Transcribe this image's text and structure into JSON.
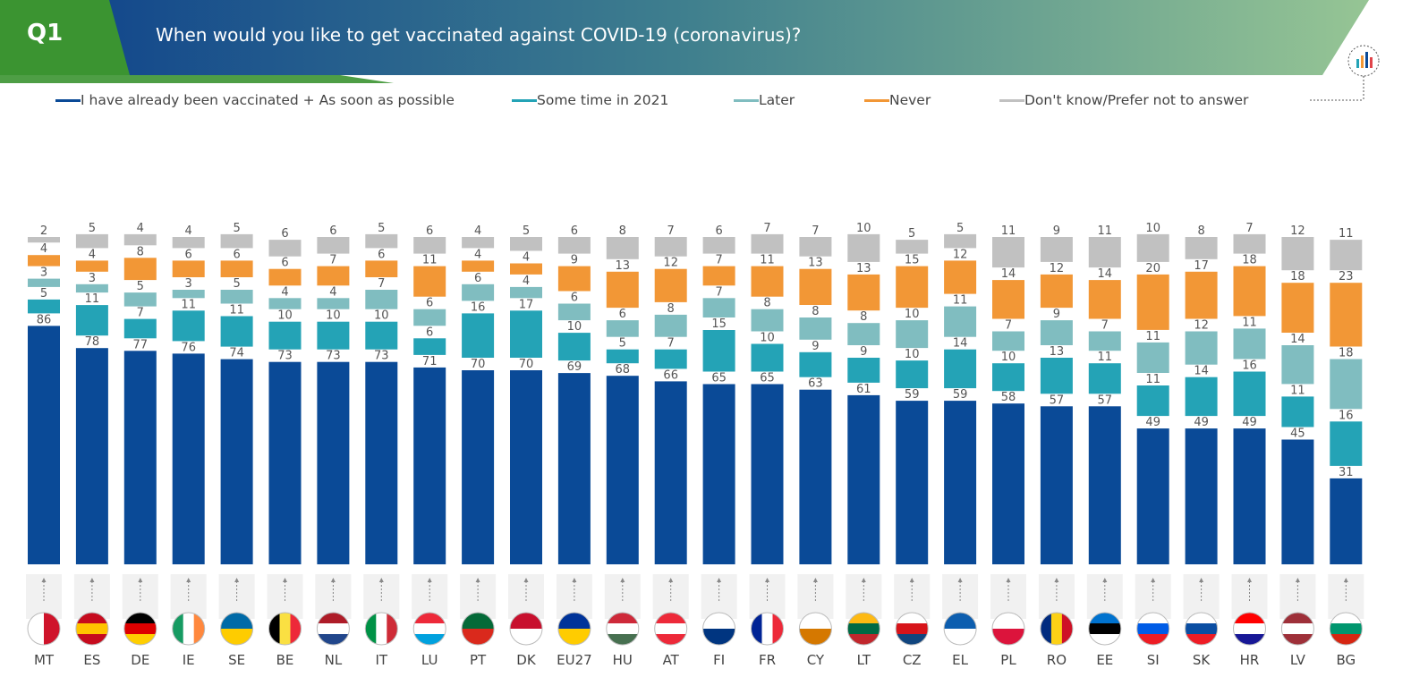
{
  "header": {
    "q_label": "Q1",
    "title": "When would you like to get vaccinated against COVID-19 (coronavirus)?"
  },
  "colors": {
    "header_green": "#3b9431",
    "header_blue": "#0c3f8c",
    "header_light": "#8fc18f",
    "series": [
      "#0a4a97",
      "#24a3b6",
      "#80bdc0",
      "#f29736",
      "#c1c1c1"
    ]
  },
  "legend": [
    {
      "label": "I have already been vaccinated + As soon as possible",
      "color": "#0a4a97"
    },
    {
      "label": "Some time in 2021",
      "color": "#24a3b6"
    },
    {
      "label": "Later",
      "color": "#80bdc0"
    },
    {
      "label": "Never",
      "color": "#f29736"
    },
    {
      "label": "Don't know/Prefer not to answer",
      "color": "#c1c1c1"
    }
  ],
  "chart_data": {
    "type": "bar",
    "stacked": true,
    "ylim": [
      0,
      100
    ],
    "categories": [
      "MT",
      "ES",
      "DE",
      "IE",
      "SE",
      "BE",
      "NL",
      "IT",
      "LU",
      "PT",
      "DK",
      "EU27",
      "HU",
      "AT",
      "FI",
      "FR",
      "CY",
      "LT",
      "CZ",
      "EL",
      "PL",
      "RO",
      "EE",
      "SI",
      "SK",
      "HR",
      "LV",
      "BG"
    ],
    "series": [
      {
        "name": "I have already been vaccinated + As soon as possible",
        "values": [
          86,
          78,
          77,
          76,
          74,
          73,
          73,
          73,
          71,
          70,
          70,
          69,
          68,
          66,
          65,
          65,
          63,
          61,
          59,
          59,
          58,
          57,
          57,
          49,
          49,
          49,
          45,
          31
        ]
      },
      {
        "name": "Some time in 2021",
        "values": [
          5,
          11,
          7,
          11,
          11,
          10,
          10,
          10,
          6,
          16,
          17,
          10,
          5,
          7,
          15,
          10,
          9,
          9,
          10,
          14,
          10,
          13,
          11,
          11,
          14,
          16,
          11,
          16
        ]
      },
      {
        "name": "Later",
        "values": [
          3,
          3,
          5,
          3,
          5,
          4,
          4,
          7,
          6,
          6,
          4,
          6,
          6,
          8,
          7,
          8,
          8,
          8,
          10,
          11,
          7,
          9,
          7,
          11,
          12,
          11,
          14,
          18
        ]
      },
      {
        "name": "Never",
        "values": [
          4,
          4,
          8,
          6,
          6,
          6,
          7,
          6,
          11,
          4,
          4,
          9,
          13,
          12,
          7,
          11,
          13,
          13,
          15,
          12,
          14,
          12,
          14,
          20,
          17,
          18,
          18,
          23
        ]
      },
      {
        "name": "Don't know/Prefer not to answer",
        "values": [
          2,
          5,
          4,
          4,
          5,
          6,
          6,
          5,
          6,
          4,
          5,
          6,
          8,
          7,
          6,
          7,
          7,
          10,
          5,
          5,
          11,
          9,
          11,
          10,
          8,
          7,
          12,
          11
        ]
      }
    ]
  }
}
